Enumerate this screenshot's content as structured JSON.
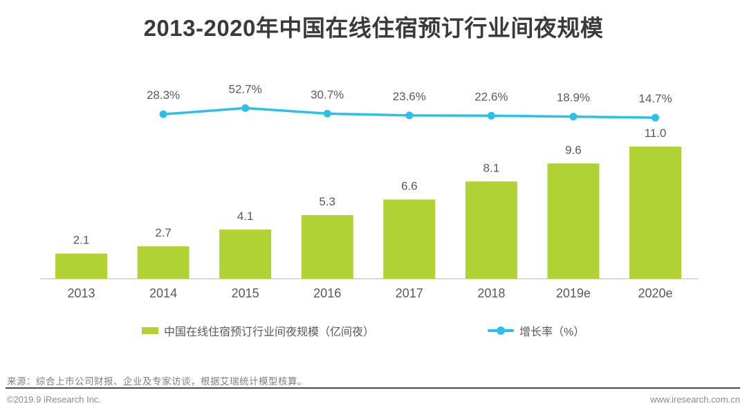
{
  "chart_data": {
    "type": "bar+line",
    "title": "2013-2020年中国在线住宿预订行业间夜规模",
    "categories": [
      "2013",
      "2014",
      "2015",
      "2016",
      "2017",
      "2018",
      "2019e",
      "2020e"
    ],
    "series": [
      {
        "name": "中国在线住宿预订行业间夜规模（亿间夜）",
        "type": "bar",
        "values": [
          2.1,
          2.7,
          4.1,
          5.3,
          6.6,
          8.1,
          9.6,
          11.0
        ],
        "labels": [
          "2.1",
          "2.7",
          "4.1",
          "5.3",
          "6.6",
          "8.1",
          "9.6",
          "11.0"
        ],
        "color": "#b1d235"
      },
      {
        "name": "增长率（%）",
        "type": "line",
        "values": [
          null,
          28.3,
          52.7,
          30.7,
          23.6,
          22.6,
          18.9,
          14.7
        ],
        "labels": [
          "",
          "28.3%",
          "52.7%",
          "30.7%",
          "23.6%",
          "22.6%",
          "18.9%",
          "14.7%"
        ],
        "color": "#2bc0e9"
      }
    ],
    "ylim_bar": [
      0,
      12
    ],
    "ylim_line_pct": [
      0,
      60
    ],
    "grid": false,
    "legend_position": "bottom",
    "axis_color": "#b5b5b5",
    "label_color": "#595959"
  },
  "source": {
    "text": "来源：综合上市公司财报、企业及专家访谈，根据艾瑞统计模型核算。"
  },
  "footer": {
    "left": "©2019.9 iResearch Inc.",
    "right": "www.iresearch.com.cn"
  }
}
